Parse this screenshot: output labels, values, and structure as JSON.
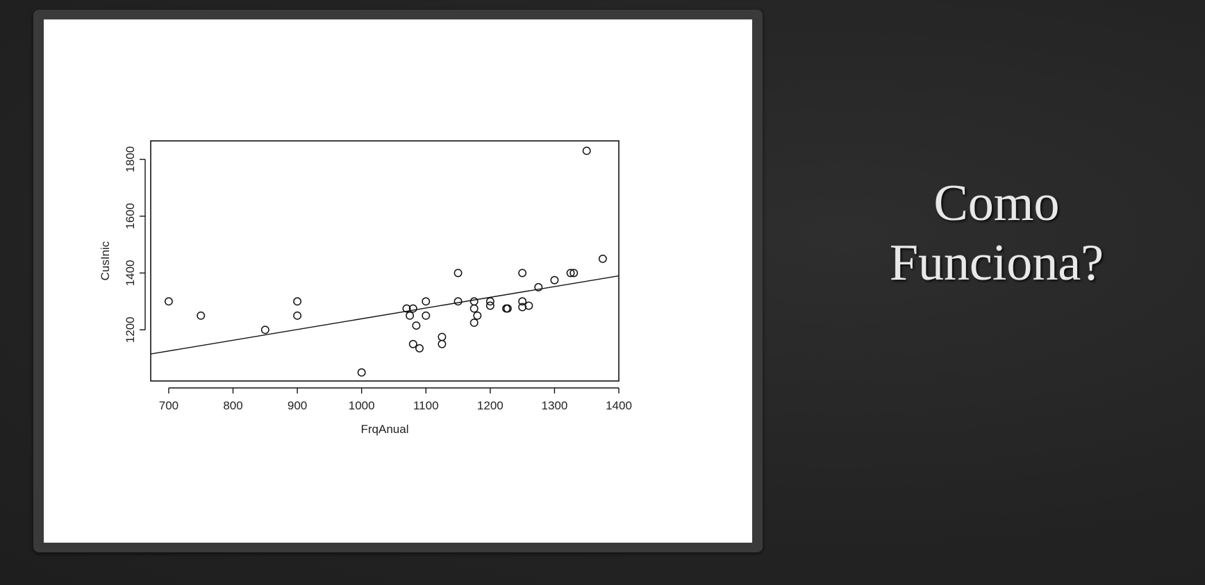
{
  "slide": {
    "title_line1": "Como",
    "title_line2": "Funciona?"
  },
  "chart_data": {
    "type": "scatter",
    "xlabel": "FrqAnual",
    "ylabel": "CusInic",
    "xlim": [
      672,
      1400
    ],
    "ylim": [
      1020,
      1865
    ],
    "x_ticks": [
      700,
      800,
      900,
      1000,
      1100,
      1200,
      1300,
      1400
    ],
    "y_ticks": [
      1200,
      1400,
      1600,
      1800
    ],
    "points": [
      {
        "x": 700,
        "y": 1300
      },
      {
        "x": 750,
        "y": 1250
      },
      {
        "x": 850,
        "y": 1200
      },
      {
        "x": 900,
        "y": 1300
      },
      {
        "x": 900,
        "y": 1250
      },
      {
        "x": 1000,
        "y": 1050
      },
      {
        "x": 1070,
        "y": 1275
      },
      {
        "x": 1075,
        "y": 1250
      },
      {
        "x": 1080,
        "y": 1275
      },
      {
        "x": 1080,
        "y": 1150
      },
      {
        "x": 1085,
        "y": 1215
      },
      {
        "x": 1090,
        "y": 1135
      },
      {
        "x": 1100,
        "y": 1300
      },
      {
        "x": 1100,
        "y": 1250
      },
      {
        "x": 1125,
        "y": 1175
      },
      {
        "x": 1125,
        "y": 1150
      },
      {
        "x": 1150,
        "y": 1400
      },
      {
        "x": 1150,
        "y": 1300
      },
      {
        "x": 1175,
        "y": 1300
      },
      {
        "x": 1175,
        "y": 1275
      },
      {
        "x": 1175,
        "y": 1225
      },
      {
        "x": 1180,
        "y": 1250
      },
      {
        "x": 1200,
        "y": 1300
      },
      {
        "x": 1200,
        "y": 1285
      },
      {
        "x": 1225,
        "y": 1275
      },
      {
        "x": 1227,
        "y": 1275
      },
      {
        "x": 1250,
        "y": 1400
      },
      {
        "x": 1250,
        "y": 1300
      },
      {
        "x": 1250,
        "y": 1280
      },
      {
        "x": 1260,
        "y": 1285
      },
      {
        "x": 1275,
        "y": 1350
      },
      {
        "x": 1300,
        "y": 1375
      },
      {
        "x": 1325,
        "y": 1400
      },
      {
        "x": 1330,
        "y": 1400
      },
      {
        "x": 1350,
        "y": 1830
      },
      {
        "x": 1375,
        "y": 1450
      }
    ],
    "regression_line": {
      "x": [
        672,
        1400
      ],
      "y": [
        1115,
        1390
      ]
    }
  }
}
